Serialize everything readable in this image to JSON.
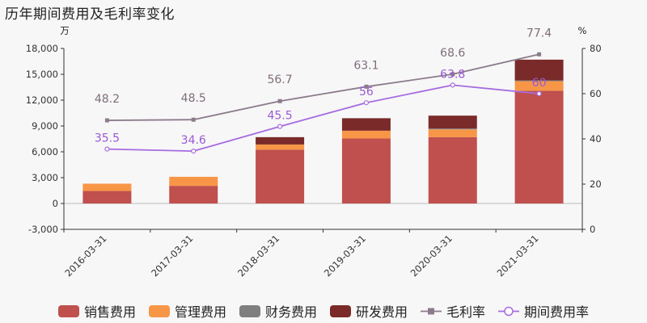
{
  "title": "历年期间费用及毛利率变化",
  "colors": {
    "sales": "#c0504d",
    "management": "#f79646",
    "finance": "#7f7f7f",
    "rnd": "#7b2a2a",
    "gross": "#8b7b8b",
    "period": "#a66be0",
    "axis": "#333333"
  },
  "chart_data": {
    "type": "bar",
    "categories": [
      "2016-03-31",
      "2017-03-31",
      "2018-03-31",
      "2019-03-31",
      "2020-03-31",
      "2021-03-31"
    ],
    "series": [
      {
        "name": "销售费用",
        "values": [
          1450,
          2050,
          6250,
          7550,
          7700,
          13100
        ]
      },
      {
        "name": "管理费用",
        "values": [
          850,
          1050,
          600,
          900,
          900,
          1100
        ]
      },
      {
        "name": "财务费用",
        "values": [
          0,
          0,
          0,
          0,
          100,
          100
        ]
      },
      {
        "name": "研发费用",
        "values": [
          0,
          0,
          850,
          1450,
          1500,
          2400
        ]
      }
    ],
    "lines": [
      {
        "name": "毛利率",
        "values": [
          48.2,
          48.5,
          56.7,
          63.1,
          68.6,
          77.4
        ]
      },
      {
        "name": "期间费用率",
        "values": [
          35.5,
          34.6,
          45.5,
          56,
          63.8,
          60
        ]
      }
    ],
    "left_axis": {
      "unit": "万",
      "ticks": [
        "18,000",
        "15,000",
        "12,000",
        "9,000",
        "6,000",
        "3,000",
        "0",
        "-3,000"
      ],
      "ylim": [
        -3000,
        18000
      ]
    },
    "right_axis": {
      "unit": "%",
      "ticks": [
        "80",
        "60",
        "40",
        "20",
        "0"
      ],
      "ylim": [
        0,
        80
      ]
    },
    "legend_position": "bottom",
    "grid": true
  },
  "legend": [
    {
      "label": "销售费用",
      "kind": "swatch",
      "color": "#c0504d"
    },
    {
      "label": "管理费用",
      "kind": "swatch",
      "color": "#f79646"
    },
    {
      "label": "财务费用",
      "kind": "swatch",
      "color": "#7f7f7f"
    },
    {
      "label": "研发费用",
      "kind": "swatch",
      "color": "#7b2a2a"
    },
    {
      "label": "毛利率",
      "kind": "square-line",
      "color": "#8b7b8b"
    },
    {
      "label": "期间费用率",
      "kind": "circle-line",
      "color": "#a66be0"
    }
  ]
}
